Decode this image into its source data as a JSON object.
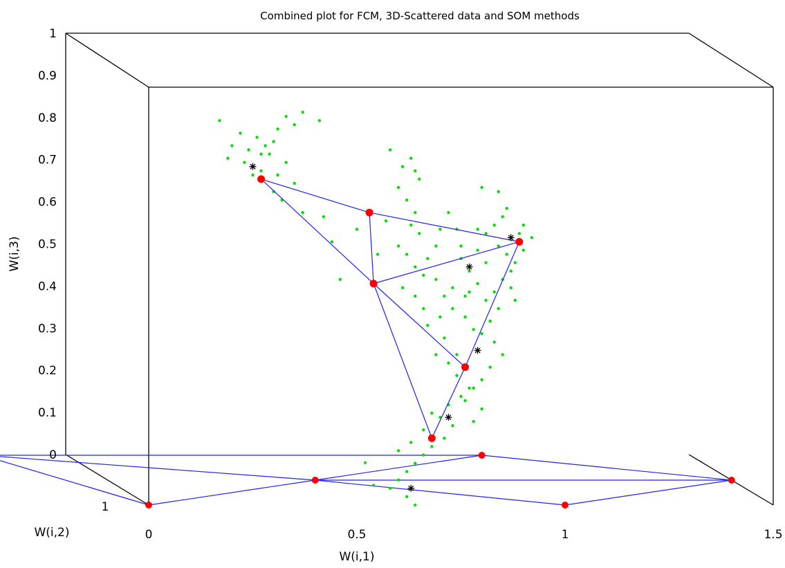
{
  "chart_data": {
    "type": "scatter",
    "projection": "3d",
    "title": "Combined plot for FCM, 3D-Scattered data and SOM methods",
    "xlabel": "W(i,1)",
    "ylabel": "W(i,2)",
    "zlabel": "W(i,3)",
    "xlim": [
      0,
      1.5
    ],
    "zlim": [
      0,
      1
    ],
    "x_ticks": [
      "0",
      "0.5",
      "1",
      "1.5"
    ],
    "y_ticks": [
      "1"
    ],
    "z_ticks": [
      "0",
      "0.1",
      "0.2",
      "0.3",
      "0.4",
      "0.5",
      "0.6",
      "0.7",
      "0.8",
      "0.9",
      "1"
    ],
    "grid": false,
    "legend": "none",
    "colors": {
      "scatter": "#00e000",
      "som_nodes": "#ff0000",
      "som_lines": "#1f1fff",
      "fcm_centers": "#000000"
    },
    "som_nodes": [
      {
        "x": 0.27,
        "z": 0.78
      },
      {
        "x": 0.53,
        "z": 0.7
      },
      {
        "x": 0.89,
        "z": 0.63
      },
      {
        "x": 0.54,
        "z": 0.53
      },
      {
        "x": 0.76,
        "z": 0.33
      },
      {
        "x": 0.68,
        "z": 0.16
      }
    ],
    "som_edges": [
      [
        0,
        1
      ],
      [
        1,
        2
      ],
      [
        0,
        3
      ],
      [
        1,
        3
      ],
      [
        3,
        2
      ],
      [
        3,
        4
      ],
      [
        4,
        2
      ],
      [
        3,
        5
      ],
      [
        5,
        4
      ]
    ],
    "fcm_centers": [
      {
        "x": 0.25,
        "z": 0.81
      },
      {
        "x": 0.87,
        "z": 0.64
      },
      {
        "x": 0.77,
        "z": 0.57
      },
      {
        "x": 0.79,
        "z": 0.37
      },
      {
        "x": 0.72,
        "z": 0.21
      },
      {
        "x": 0.63,
        "z": 0.04
      }
    ],
    "floor_nodes": [
      {
        "x": 0.0,
        "y": 1.0
      },
      {
        "x": 0.4,
        "y": 0.5
      },
      {
        "x": 0.8,
        "y": 0.0
      },
      {
        "x": 1.0,
        "y": 1.0
      },
      {
        "x": 1.4,
        "y": 0.5
      },
      {
        "x": -0.4,
        "y": 0.0
      }
    ],
    "floor_edges": [
      [
        5,
        0
      ],
      [
        5,
        2
      ],
      [
        5,
        1
      ],
      [
        0,
        1
      ],
      [
        1,
        2
      ],
      [
        1,
        3
      ],
      [
        2,
        4
      ],
      [
        3,
        4
      ],
      [
        1,
        4
      ]
    ],
    "scatter_points": [
      [
        0.17,
        0.92
      ],
      [
        0.2,
        0.86
      ],
      [
        0.22,
        0.89
      ],
      [
        0.24,
        0.85
      ],
      [
        0.26,
        0.88
      ],
      [
        0.28,
        0.86
      ],
      [
        0.3,
        0.87
      ],
      [
        0.31,
        0.9
      ],
      [
        0.33,
        0.93
      ],
      [
        0.35,
        0.91
      ],
      [
        0.37,
        0.94
      ],
      [
        0.41,
        0.92
      ],
      [
        0.19,
        0.83
      ],
      [
        0.23,
        0.82
      ],
      [
        0.27,
        0.8
      ],
      [
        0.31,
        0.79
      ],
      [
        0.33,
        0.82
      ],
      [
        0.29,
        0.84
      ],
      [
        0.35,
        0.77
      ],
      [
        0.3,
        0.75
      ],
      [
        0.32,
        0.73
      ],
      [
        0.37,
        0.7
      ],
      [
        0.42,
        0.69
      ],
      [
        0.25,
        0.79
      ],
      [
        0.27,
        0.84
      ],
      [
        0.44,
        0.63
      ],
      [
        0.46,
        0.54
      ],
      [
        0.5,
        0.66
      ],
      [
        0.57,
        0.68
      ],
      [
        0.55,
        0.6
      ],
      [
        0.58,
        0.85
      ],
      [
        0.63,
        0.83
      ],
      [
        0.61,
        0.81
      ],
      [
        0.64,
        0.8
      ],
      [
        0.65,
        0.78
      ],
      [
        0.6,
        0.76
      ],
      [
        0.62,
        0.73
      ],
      [
        0.64,
        0.7
      ],
      [
        0.63,
        0.67
      ],
      [
        0.65,
        0.65
      ],
      [
        0.6,
        0.62
      ],
      [
        0.62,
        0.6
      ],
      [
        0.64,
        0.57
      ],
      [
        0.66,
        0.55
      ],
      [
        0.69,
        0.62
      ],
      [
        0.7,
        0.66
      ],
      [
        0.72,
        0.7
      ],
      [
        0.74,
        0.66
      ],
      [
        0.67,
        0.59
      ],
      [
        0.69,
        0.54
      ],
      [
        0.71,
        0.5
      ],
      [
        0.73,
        0.47
      ],
      [
        0.76,
        0.45
      ],
      [
        0.78,
        0.42
      ],
      [
        0.7,
        0.45
      ],
      [
        0.66,
        0.47
      ],
      [
        0.64,
        0.5
      ],
      [
        0.61,
        0.52
      ],
      [
        0.67,
        0.43
      ],
      [
        0.71,
        0.4
      ],
      [
        0.69,
        0.36
      ],
      [
        0.72,
        0.34
      ],
      [
        0.74,
        0.31
      ],
      [
        0.77,
        0.28
      ],
      [
        0.75,
        0.26
      ],
      [
        0.72,
        0.24
      ],
      [
        0.7,
        0.21
      ],
      [
        0.73,
        0.19
      ],
      [
        0.71,
        0.16
      ],
      [
        0.68,
        0.14
      ],
      [
        0.66,
        0.12
      ],
      [
        0.64,
        0.1
      ],
      [
        0.62,
        0.08
      ],
      [
        0.6,
        0.06
      ],
      [
        0.58,
        0.04
      ],
      [
        0.62,
        0.02
      ],
      [
        0.64,
        0.0
      ],
      [
        0.6,
        0.13
      ],
      [
        0.63,
        0.15
      ],
      [
        0.66,
        0.18
      ],
      [
        0.68,
        0.22
      ],
      [
        0.74,
        0.36
      ],
      [
        0.8,
        0.76
      ],
      [
        0.84,
        0.75
      ],
      [
        0.86,
        0.71
      ],
      [
        0.85,
        0.69
      ],
      [
        0.83,
        0.67
      ],
      [
        0.81,
        0.65
      ],
      [
        0.84,
        0.62
      ],
      [
        0.86,
        0.6
      ],
      [
        0.88,
        0.58
      ],
      [
        0.9,
        0.61
      ],
      [
        0.92,
        0.64
      ],
      [
        0.9,
        0.67
      ],
      [
        0.87,
        0.56
      ],
      [
        0.85,
        0.54
      ],
      [
        0.83,
        0.51
      ],
      [
        0.81,
        0.49
      ],
      [
        0.79,
        0.53
      ],
      [
        0.77,
        0.56
      ],
      [
        0.75,
        0.59
      ],
      [
        0.79,
        0.61
      ],
      [
        0.81,
        0.58
      ],
      [
        0.84,
        0.47
      ],
      [
        0.82,
        0.44
      ],
      [
        0.8,
        0.41
      ],
      [
        0.83,
        0.39
      ],
      [
        0.85,
        0.36
      ],
      [
        0.82,
        0.33
      ],
      [
        0.8,
        0.3
      ],
      [
        0.78,
        0.28
      ],
      [
        0.76,
        0.25
      ],
      [
        0.8,
        0.23
      ],
      [
        0.78,
        0.2
      ],
      [
        0.77,
        0.51
      ],
      [
        0.87,
        0.52
      ],
      [
        0.88,
        0.49
      ],
      [
        0.89,
        0.65
      ],
      [
        0.79,
        0.66
      ],
      [
        0.75,
        0.62
      ],
      [
        0.73,
        0.52
      ],
      [
        0.76,
        0.5
      ]
    ],
    "floor_scatter": [
      {
        "x": 0.52,
        "y": 0.15
      },
      {
        "x": 0.54,
        "y": 0.6
      }
    ]
  }
}
